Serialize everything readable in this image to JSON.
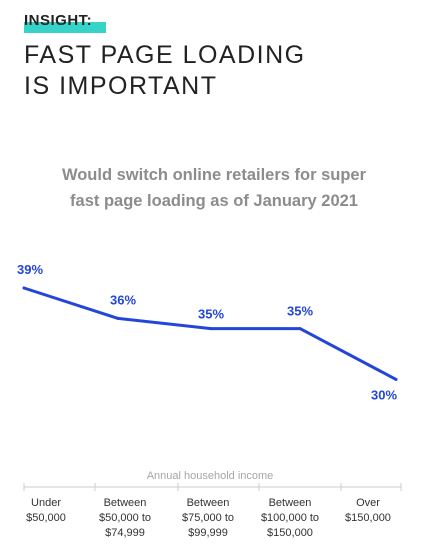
{
  "header": {
    "kicker": "INSIGHT:",
    "headline_lines": [
      "FAST PAGE LOADING",
      "IS IMPORTANT"
    ]
  },
  "colors": {
    "accent": "#36d4c8",
    "line": "#2346d9",
    "label": "#2346d9",
    "title": "#8c8c8c",
    "axis": "#cccccc"
  },
  "chart_data": {
    "type": "line",
    "title_lines": [
      "Would switch online retailers for super",
      "fast page loading as of January 2021"
    ],
    "xlabel": "Annual household income",
    "ylabel": "",
    "categories": [
      [
        "Under",
        "$50,000"
      ],
      [
        "Between",
        "$50,000 to",
        "$74,999"
      ],
      [
        "Between",
        "$75,000 to",
        "$99,999"
      ],
      [
        "Between",
        "$100,000 to",
        "$150,000"
      ],
      [
        "Over",
        "$150,000"
      ]
    ],
    "values": [
      39,
      36,
      35,
      35,
      30
    ],
    "data_labels": [
      "39%",
      "36%",
      "35%",
      "35%",
      "30%"
    ],
    "grid": false
  }
}
